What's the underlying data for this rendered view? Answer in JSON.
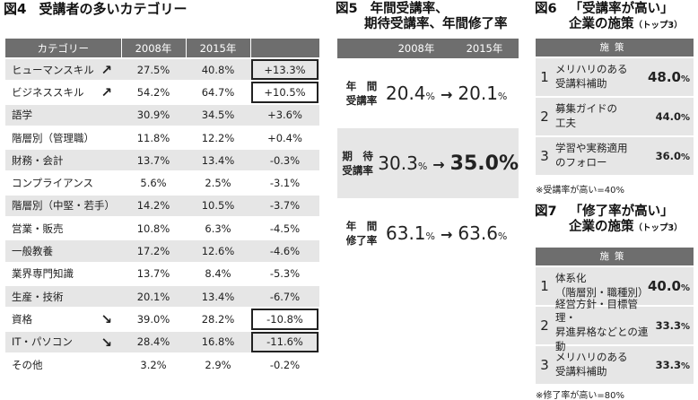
{
  "fig4": {
    "num": "図4",
    "title": "受講者の多いカテゴリー",
    "headers": [
      "カテゴリー",
      "2008年",
      "2015年",
      ""
    ],
    "rows": [
      {
        "cat": "ヒューマンスキル",
        "y2008": "27.5%",
        "y2015": "40.8%",
        "diff": "+13.3%",
        "arrow": "↗",
        "boxed": true
      },
      {
        "cat": "ビジネススキル",
        "y2008": "54.2%",
        "y2015": "64.7%",
        "diff": "+10.5%",
        "arrow": "↗",
        "boxed": true
      },
      {
        "cat": "語学",
        "y2008": "30.9%",
        "y2015": "34.5%",
        "diff": "+3.6%",
        "arrow": "",
        "boxed": false
      },
      {
        "cat": "階層別（管理職）",
        "y2008": "11.8%",
        "y2015": "12.2%",
        "diff": "+0.4%",
        "arrow": "",
        "boxed": false
      },
      {
        "cat": "財務・会計",
        "y2008": "13.7%",
        "y2015": "13.4%",
        "diff": "-0.3%",
        "arrow": "",
        "boxed": false
      },
      {
        "cat": "コンプライアンス",
        "y2008": "5.6%",
        "y2015": "2.5%",
        "diff": "-3.1%",
        "arrow": "",
        "boxed": false
      },
      {
        "cat": "階層別（中堅・若手）",
        "y2008": "14.2%",
        "y2015": "10.5%",
        "diff": "-3.7%",
        "arrow": "",
        "boxed": false
      },
      {
        "cat": "営業・販売",
        "y2008": "10.8%",
        "y2015": "6.3%",
        "diff": "-4.5%",
        "arrow": "",
        "boxed": false
      },
      {
        "cat": "一般教養",
        "y2008": "17.2%",
        "y2015": "12.6%",
        "diff": "-4.6%",
        "arrow": "",
        "boxed": false
      },
      {
        "cat": "業界専門知識",
        "y2008": "13.7%",
        "y2015": "8.4%",
        "diff": "-5.3%",
        "arrow": "",
        "boxed": false
      },
      {
        "cat": "生産・技術",
        "y2008": "20.1%",
        "y2015": "13.4%",
        "diff": "-6.7%",
        "arrow": "",
        "boxed": false
      },
      {
        "cat": "資格",
        "y2008": "39.0%",
        "y2015": "28.2%",
        "diff": "-10.8%",
        "arrow": "↘",
        "boxed": true
      },
      {
        "cat": "IT・パソコン",
        "y2008": "28.4%",
        "y2015": "16.8%",
        "diff": "-11.6%",
        "arrow": "↘",
        "boxed": true
      },
      {
        "cat": "その他",
        "y2008": "3.2%",
        "y2015": "2.9%",
        "diff": "-0.2%",
        "arrow": "",
        "boxed": false
      }
    ]
  },
  "fig5": {
    "num": "図5",
    "title_line1": "年間受講率、",
    "title_line2": "期待受講率、年間修了率",
    "headers": [
      "2008年",
      "2015年"
    ],
    "rows": [
      {
        "label1": "年　間",
        "label2": "受講率",
        "v2008": "20.4",
        "v2015": "20.1",
        "emph": false
      },
      {
        "label1": "期　待",
        "label2": "受講率",
        "v2008": "30.3",
        "v2015": "35.0",
        "emph": true
      },
      {
        "label1": "年　間",
        "label2": "修了率",
        "v2008": "63.1",
        "v2015": "63.6",
        "emph": false
      }
    ],
    "unit": "%",
    "arrow": "→"
  },
  "fig6": {
    "num": "図6",
    "title_line1": "「受講率が高い」",
    "title_line2": "企業の施策",
    "title_sub": "（トップ3）",
    "header": "施策",
    "items": [
      {
        "rank": "1",
        "name1": "メリハリのある",
        "name2": "受講料補助",
        "value": "48.0",
        "unit": "%"
      },
      {
        "rank": "2",
        "name1": "募集ガイドの",
        "name2": "工夫",
        "value": "44.0",
        "unit": "%"
      },
      {
        "rank": "3",
        "name1": "学習や実務適用",
        "name2": "のフォロー",
        "value": "36.0",
        "unit": "%"
      }
    ],
    "note": "※受講率が高い=40%"
  },
  "fig7": {
    "num": "図7",
    "title_line1": "「修了率が高い」",
    "title_line2": "企業の施策",
    "title_sub": "（トップ3）",
    "header": "施策",
    "items": [
      {
        "rank": "1",
        "name1": "体系化",
        "name2": "（階層別・職種別）",
        "value": "40.0",
        "unit": "%"
      },
      {
        "rank": "2",
        "name1": "経営方針・目標管理・",
        "name2": "昇進昇格などとの連動",
        "value": "33.3",
        "unit": "%"
      },
      {
        "rank": "3",
        "name1": "メリハリのある",
        "name2": "受講料補助",
        "value": "33.3",
        "unit": "%"
      }
    ],
    "note": "※修了率が高い=80%"
  }
}
